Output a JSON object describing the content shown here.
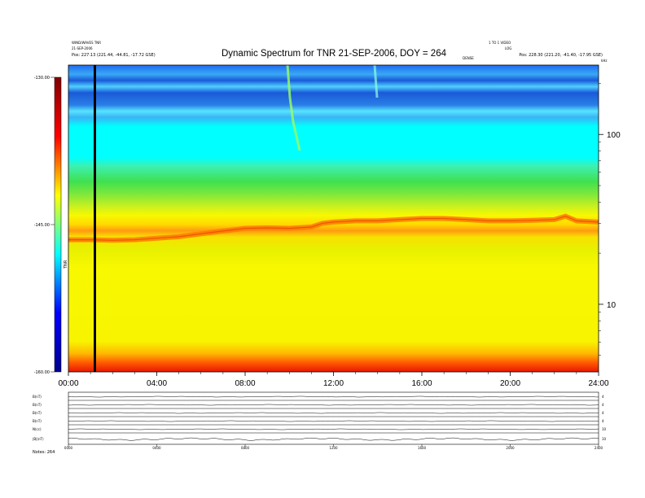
{
  "header": {
    "left_line1": "WIND/WAVES TNR",
    "left_line2": "21-SEP-2006",
    "left_line3": "Pos: 227.13 (221.44, -44.81, -17.72 GSE)",
    "right_line1": "1 TO 1 VIDEO",
    "right_line2": "LOG",
    "right_line3": "Pos: 228.30 (221.20, -41.40, -17.95 GSE)",
    "right_corner": "kHz",
    "center_small": "DENSE"
  },
  "chart_data": {
    "type": "heatmap",
    "title": "Dynamic Spectrum for TNR 21-SEP-2006, DOY = 264",
    "x_ticks": [
      "00:00",
      "04:00",
      "08:00",
      "12:00",
      "16:00",
      "20:00",
      "24:00"
    ],
    "x_range_hours": [
      0,
      24
    ],
    "y_scale": "log",
    "y_unit_label": "kHz",
    "y_ticks": [
      "100",
      "10"
    ],
    "y_tick_values": [
      100,
      10
    ],
    "y_range_khz": [
      4,
      256
    ],
    "colorbar_label": "TNR",
    "colorbar_ticks": [
      "-130.00",
      "-145.00",
      "-160.00"
    ],
    "colorbar_tick_values": [
      -130,
      -145,
      -160
    ],
    "colorbar_range": [
      -160,
      -130
    ],
    "colormap": [
      "#00008f",
      "#0000ff",
      "#00ffff",
      "#ffff00",
      "#ff0000",
      "#800000"
    ],
    "data_gap_hour": 1.2,
    "plasma_line_khz": [
      [
        0.0,
        24.0
      ],
      [
        1.0,
        24.0
      ],
      [
        2.0,
        23.8
      ],
      [
        3.0,
        24.0
      ],
      [
        4.0,
        24.5
      ],
      [
        5.0,
        25.0
      ],
      [
        6.0,
        26.0
      ],
      [
        7.0,
        27.0
      ],
      [
        8.0,
        28.0
      ],
      [
        9.0,
        28.2
      ],
      [
        10.0,
        28.0
      ],
      [
        11.0,
        28.5
      ],
      [
        11.5,
        30.0
      ],
      [
        12.0,
        30.5
      ],
      [
        13.0,
        31.0
      ],
      [
        14.0,
        31.0
      ],
      [
        15.0,
        31.5
      ],
      [
        16.0,
        32.0
      ],
      [
        17.0,
        32.0
      ],
      [
        18.0,
        31.5
      ],
      [
        19.0,
        31.0
      ],
      [
        20.0,
        31.0
      ],
      [
        21.0,
        31.2
      ],
      [
        22.0,
        31.5
      ],
      [
        22.5,
        33.0
      ],
      [
        23.0,
        31.0
      ],
      [
        24.0,
        30.5
      ]
    ]
  },
  "panels": [
    {
      "label": "B(nT)",
      "tick": "4"
    },
    {
      "label": "B(nT)",
      "tick": "4"
    },
    {
      "label": "B(nT)",
      "tick": "4"
    },
    {
      "label": "B(nT)",
      "tick": "4"
    },
    {
      "label": "N(cc)",
      "tick": "10"
    },
    {
      "label": "|B|(nT)",
      "tick": "10"
    }
  ],
  "panel_x_ticks": [
    "0000",
    "0400",
    "0800",
    "1200",
    "1600",
    "2000",
    "2400"
  ],
  "footer": "Notes: 264"
}
